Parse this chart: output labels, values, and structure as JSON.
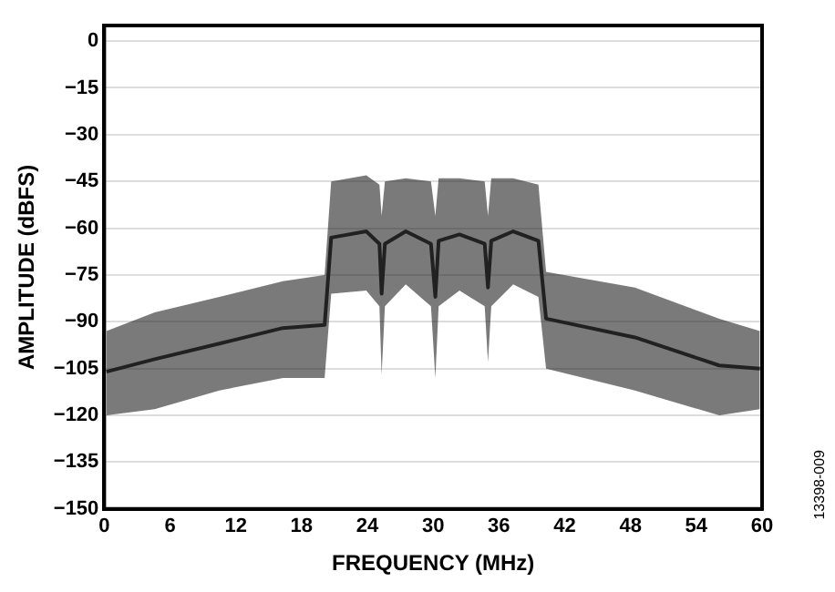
{
  "chart_data": {
    "type": "line",
    "xlabel": "FREQUENCY (MHz)",
    "ylabel": "AMPLITUDE (dBFS)",
    "annotations": [
      "13398-009"
    ],
    "x": [
      0.2,
      4.6,
      10.5,
      16.3,
      20.1,
      20.7,
      23.9,
      25.1,
      25.3,
      25.6,
      27.5,
      29.8,
      30.2,
      30.5,
      32.4,
      34.7,
      35.0,
      35.3,
      37.3,
      39.6,
      40.3,
      48.4,
      56.1,
      59.8
    ],
    "series": [
      {
        "color": "#222222",
        "values": [
          -106,
          -102,
          -97,
          -92,
          -91,
          -63,
          -61,
          -65,
          -81,
          -65,
          -61,
          -65,
          -82,
          -64,
          -62,
          -65,
          -79,
          -64,
          -61,
          -64,
          -89,
          -95,
          -104,
          -105
        ],
        "upper": [
          -93,
          -87,
          -82,
          -77,
          -75,
          -45,
          -43,
          -46,
          -56,
          -45,
          -44,
          -45,
          -56,
          -44,
          -44,
          -45,
          -56,
          -44,
          -44,
          -46,
          -74,
          -79,
          -89,
          -93
        ],
        "lower": [
          -120,
          -118,
          -112,
          -108,
          -108,
          -81,
          -80,
          -85,
          -107,
          -85,
          -78,
          -85,
          -108,
          -85,
          -80,
          -85,
          -103,
          -85,
          -78,
          -82,
          -105,
          -112,
          -120,
          -118
        ]
      }
    ],
    "xlim": [
      0,
      60
    ],
    "xticks": [
      0,
      6,
      12,
      18,
      24,
      30,
      36,
      42,
      48,
      54,
      60
    ],
    "ylim": [
      -150,
      5
    ],
    "yticks": [
      0,
      {
        "value": -15,
        "label": "−15"
      },
      {
        "value": -30,
        "label": "−30"
      },
      {
        "value": -45,
        "label": "−45"
      },
      {
        "value": -60,
        "label": "−60"
      },
      {
        "value": -75,
        "label": "−75"
      },
      {
        "value": -90,
        "label": "−90"
      },
      {
        "value": -105,
        "label": "−105"
      },
      {
        "value": -120,
        "label": "−120"
      },
      {
        "value": -135,
        "label": "−135"
      },
      {
        "value": -150,
        "label": "−150"
      }
    ],
    "grid": "y",
    "legend": false,
    "marker": "none",
    "line_style": "solid"
  }
}
